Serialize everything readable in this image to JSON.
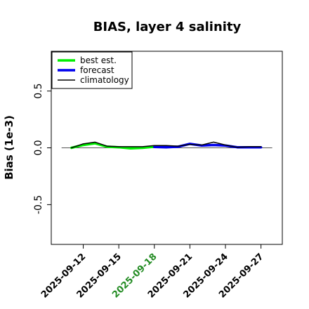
{
  "chart_data": {
    "type": "line",
    "title": "BIAS, layer 4 salinity",
    "xlabel": "",
    "ylabel": "Bias (1e-3)",
    "ylim": [
      -0.85,
      0.85
    ],
    "yticks": [
      -0.5,
      0.0,
      0.5
    ],
    "ytick_labels": [
      "-0.5",
      "0.0",
      "0.5"
    ],
    "xticks": [
      {
        "label": "2025-09-12",
        "day": 12,
        "color": "#000000"
      },
      {
        "label": "2025-09-15",
        "day": 15,
        "color": "#000000"
      },
      {
        "label": "2025-09-18",
        "day": 18,
        "color": "#228B22"
      },
      {
        "label": "2025-09-21",
        "day": 21,
        "color": "#000000"
      },
      {
        "label": "2025-09-24",
        "day": 24,
        "color": "#000000"
      },
      {
        "label": "2025-09-27",
        "day": 27,
        "color": "#000000"
      }
    ],
    "xlim_days": [
      9.3,
      28.8
    ],
    "zero_line": true,
    "grid": false,
    "legend_position": "top-left",
    "series": [
      {
        "name": "best est.",
        "color": "#00ee00",
        "width": 3.5,
        "x_days": [
          11,
          12,
          13,
          14,
          15,
          16,
          17,
          18
        ],
        "values": [
          0.0,
          0.025,
          0.04,
          0.01,
          0.005,
          -0.005,
          0.0,
          0.01
        ]
      },
      {
        "name": "forecast",
        "color": "#0000ee",
        "width": 3.5,
        "x_days": [
          18,
          19,
          20,
          21,
          22,
          23,
          24,
          25,
          26,
          27
        ],
        "values": [
          0.008,
          0.005,
          0.01,
          0.035,
          0.02,
          0.025,
          0.02,
          0.005,
          0.005,
          0.005
        ]
      },
      {
        "name": "climatology",
        "color": "#000000",
        "width": 1.5,
        "x_days": [
          11,
          12,
          13,
          14,
          15,
          16,
          17,
          18,
          19,
          20,
          21,
          22,
          23,
          24,
          25,
          26,
          27
        ],
        "values": [
          0.0,
          0.035,
          0.05,
          0.015,
          0.01,
          0.01,
          0.01,
          0.02,
          0.02,
          0.015,
          0.03,
          0.025,
          0.05,
          0.025,
          0.005,
          0.01,
          0.01
        ]
      }
    ]
  }
}
